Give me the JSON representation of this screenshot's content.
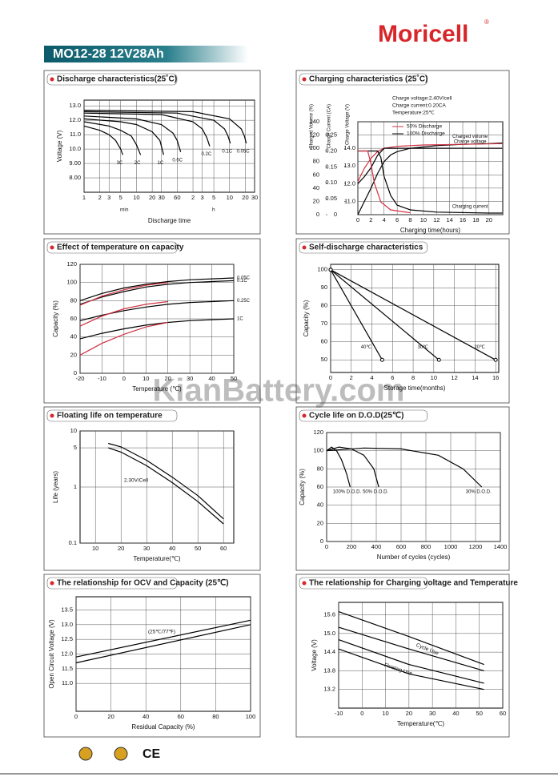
{
  "header": {
    "brand": "Moricell",
    "reg": "®",
    "model": "MO12-28  12V28Ah"
  },
  "watermark": "KianBattery.com",
  "footer": {
    "mark": "CE"
  },
  "charts": [
    {
      "title": "Discharge characteristics(25˚C)",
      "ylabel": "Voltage (V)",
      "xlabel": "Discharge time",
      "notes": [
        "min",
        "h"
      ],
      "xlog": true,
      "xlim": [
        1,
        1800
      ],
      "xticks": [
        1,
        2,
        3,
        5,
        10,
        20,
        30,
        60,
        {
          "value": 120,
          "label": "2"
        },
        {
          "value": 180,
          "label": "3"
        },
        {
          "value": 300,
          "label": "5"
        },
        {
          "value": 600,
          "label": "10"
        },
        {
          "value": 1200,
          "label": "20"
        },
        {
          "value": 1800,
          "label": "30"
        }
      ],
      "ylim": [
        7.0,
        13.4
      ],
      "yticks": [
        {
          "value": 8,
          "label": "8.00"
        },
        {
          "value": 9,
          "label": "9.00"
        },
        {
          "value": 10,
          "label": "10.0"
        },
        {
          "value": 11,
          "label": "11.0"
        },
        {
          "value": 12,
          "label": "12.0"
        },
        {
          "value": 13,
          "label": "13.0"
        }
      ],
      "curves": [
        {
          "name": "3C",
          "color": "#000",
          "x": [
            1,
            2,
            3,
            4,
            5,
            5.5
          ],
          "y": [
            11.6,
            11.3,
            11.0,
            10.6,
            10.0,
            9.6
          ]
        },
        {
          "name": "2C",
          "color": "#000",
          "x": [
            1,
            3,
            5,
            8,
            10,
            12
          ],
          "y": [
            11.9,
            11.6,
            11.3,
            10.9,
            10.3,
            9.6
          ]
        },
        {
          "name": "1C",
          "color": "#000",
          "x": [
            1,
            5,
            10,
            20,
            28,
            33
          ],
          "y": [
            12.1,
            11.9,
            11.7,
            11.2,
            10.6,
            9.6
          ]
        },
        {
          "name": "0.6C",
          "color": "#000",
          "x": [
            1,
            10,
            30,
            50,
            60,
            70
          ],
          "y": [
            12.3,
            12.1,
            11.7,
            11.1,
            10.6,
            9.8
          ]
        },
        {
          "name": "0.2C",
          "color": "#000",
          "x": [
            1,
            30,
            120,
            180,
            220,
            250
          ],
          "y": [
            12.5,
            12.4,
            11.9,
            11.4,
            10.8,
            10.2
          ]
        },
        {
          "name": "0.1C",
          "color": "#000",
          "x": [
            1,
            60,
            300,
            480,
            560,
            620
          ],
          "y": [
            12.6,
            12.5,
            12.0,
            11.4,
            10.9,
            10.4
          ]
        },
        {
          "name": "0.05C",
          "color": "#000",
          "x": [
            1,
            120,
            600,
            1000,
            1150,
            1250
          ],
          "y": [
            12.7,
            12.6,
            12.1,
            11.4,
            10.9,
            10.4
          ]
        }
      ]
    },
    {
      "title": "Charging characteristics (25˚C)",
      "ylabel": "Charged Volume (%)",
      "y2label": "Charge Current (CA)",
      "y3label": "Charge Voltage (V)",
      "xlabel": "Charging time(hours)",
      "notes": [
        "Charge voltage:2.40V/cell",
        "Charge current:0.20CA",
        "Temperature:25℃",
        "50% Discharge",
        "100% Discharge"
      ],
      "xlim": [
        0,
        22.1
      ],
      "xticks": [
        0,
        2,
        4,
        6,
        8,
        10,
        12,
        14,
        16,
        18,
        20
      ],
      "ylim": [
        0,
        140
      ],
      "yticks": [
        0,
        20,
        40,
        60,
        80,
        100,
        120,
        140
      ],
      "y2lim": [
        0,
        0.2917
      ],
      "y2ticks": [
        0,
        0.05,
        {
          "value": 0.1,
          "label": "0.10"
        },
        0.15,
        {
          "value": 0.2,
          "label": "0.20"
        },
        0.25
      ],
      "y3lim": [
        10.25,
        15.5
      ],
      "y3ticks": [
        {
          "value": 11,
          "label": "11.0"
        },
        {
          "value": 12,
          "label": "12.0"
        },
        {
          "value": 13,
          "label": "13.0"
        },
        {
          "value": 14,
          "label": "14.0"
        }
      ],
      "curves": [
        {
          "name": "Charged volume",
          "color": "#000",
          "x": [
            0,
            1,
            2,
            3,
            4,
            5,
            6,
            8,
            12,
            16,
            20,
            22
          ],
          "y": [
            0,
            20,
            40,
            62,
            80,
            90,
            95,
            100,
            104,
            106,
            107,
            108
          ]
        },
        {
          "color": "#d03040",
          "x": [
            0,
            1,
            2,
            3,
            4,
            6,
            10,
            16,
            22
          ],
          "y": [
            50,
            70,
            85,
            95,
            100,
            103,
            105,
            106,
            107
          ]
        },
        {
          "name": "Charge voltage",
          "color": "#000",
          "axis": "y3",
          "x": [
            0,
            1,
            2,
            3,
            4,
            6,
            22
          ],
          "y": [
            12.0,
            12.4,
            12.9,
            13.6,
            14.0,
            14.0,
            14.0
          ]
        },
        {
          "name": "Charging current",
          "color": "#000",
          "axis": "y2",
          "x": [
            0,
            3,
            3.5,
            4,
            5,
            6,
            8,
            12,
            20,
            22
          ],
          "y": [
            0.2,
            0.2,
            0.18,
            0.12,
            0.06,
            0.03,
            0.015,
            0.008,
            0.005,
            0.005
          ]
        },
        {
          "color": "#d03040",
          "axis": "y2",
          "x": [
            0,
            1.5,
            2,
            2.5,
            3.5,
            5,
            8
          ],
          "y": [
            0.2,
            0.2,
            0.16,
            0.1,
            0.04,
            0.015,
            0.006
          ]
        }
      ]
    },
    {
      "title": "Effect of temperature on capacity",
      "ylabel": "Capacity (%)",
      "xlabel": "Temperature (℃)",
      "xlim": [
        -20,
        50
      ],
      "xticks": [
        -20,
        -10,
        0,
        10,
        20,
        30,
        40,
        50
      ],
      "ylim": [
        0,
        120
      ],
      "yticks": [
        0,
        20,
        40,
        60,
        80,
        100,
        120
      ],
      "curves": [
        {
          "name": "0.05C",
          "color": "#000",
          "x": [
            -20,
            -10,
            0,
            10,
            20,
            30,
            40,
            50
          ],
          "y": [
            80,
            88,
            94,
            98,
            101,
            103,
            104,
            105
          ]
        },
        {
          "name": "0.1C",
          "color": "#000",
          "x": [
            -20,
            -10,
            0,
            10,
            20,
            30,
            40,
            50
          ],
          "y": [
            76,
            84,
            90,
            95,
            98,
            100,
            101,
            102
          ]
        },
        {
          "name": "0.25C",
          "color": "#000",
          "x": [
            -20,
            -10,
            0,
            10,
            20,
            30,
            40,
            50
          ],
          "y": [
            58,
            64,
            69,
            73,
            76,
            78,
            79,
            80
          ]
        },
        {
          "name": "1C",
          "color": "#000",
          "x": [
            -20,
            -10,
            0,
            10,
            20,
            30,
            40,
            50
          ],
          "y": [
            38,
            44,
            49,
            53,
            56,
            58,
            59,
            60
          ]
        },
        {
          "color": "#d03040",
          "x": [
            -20,
            -10,
            0,
            10,
            20
          ],
          "y": [
            75,
            85,
            92,
            97,
            100
          ]
        },
        {
          "color": "#d03040",
          "x": [
            -20,
            -10,
            0,
            10,
            20
          ],
          "y": [
            52,
            63,
            71,
            76,
            79
          ]
        },
        {
          "color": "#d03040",
          "x": [
            -20,
            -10,
            0,
            10,
            20
          ],
          "y": [
            20,
            33,
            43,
            51,
            56
          ]
        }
      ]
    },
    {
      "title": "Self-discharge characteristics",
      "ylabel": "Capacity (%)",
      "xlabel": "Storage time(months)",
      "markers": true,
      "xlim": [
        0,
        16.3
      ],
      "xticks": [
        0,
        2,
        4,
        6,
        8,
        10,
        12,
        14,
        16
      ],
      "ylim": [
        43,
        103
      ],
      "yticks": [
        50,
        60,
        70,
        80,
        90,
        100
      ],
      "curves": [
        {
          "name": "40℃",
          "color": "#000",
          "x": [
            0,
            5
          ],
          "y": [
            100,
            50
          ]
        },
        {
          "name": "30℃",
          "color": "#000",
          "x": [
            0,
            10.5
          ],
          "y": [
            100,
            50
          ]
        },
        {
          "name": "20℃",
          "color": "#000",
          "x": [
            0,
            16
          ],
          "y": [
            100,
            50
          ]
        }
      ]
    },
    {
      "title": "Floating life on temperature",
      "ylabel": "Life (years)",
      "xlabel": "Temperature(℃)",
      "notes": [
        "2.30V/Cell"
      ],
      "ylog": true,
      "xlim": [
        4,
        64
      ],
      "xticks": [
        10,
        20,
        30,
        40,
        50,
        60
      ],
      "ylim": [
        0.1,
        10
      ],
      "yticks": [
        0.1,
        1,
        5,
        10
      ],
      "curves": [
        {
          "color": "#000",
          "x": [
            15,
            20,
            30,
            40,
            50,
            60
          ],
          "y": [
            6,
            5.2,
            3,
            1.5,
            0.7,
            0.27
          ]
        },
        {
          "color": "#000",
          "x": [
            15,
            20,
            30,
            40,
            50,
            60
          ],
          "y": [
            5,
            4.2,
            2.4,
            1.2,
            0.55,
            0.22
          ]
        }
      ]
    },
    {
      "title": "Cycle life on D.O.D(25℃)",
      "ylabel": "Capacity (%)",
      "xlabel": "Number of cycles (cycles)",
      "xlim": [
        0,
        1400
      ],
      "xticks": [
        0,
        200,
        400,
        600,
        800,
        1000,
        1200,
        1400
      ],
      "ylim": [
        0,
        120
      ],
      "yticks": [
        0,
        20,
        40,
        60,
        80,
        100,
        120
      ],
      "curves": [
        {
          "name": "100% D.O.D.",
          "color": "#000",
          "x": [
            0,
            40,
            80,
            120,
            160,
            190
          ],
          "y": [
            100,
            104,
            100,
            90,
            75,
            60
          ]
        },
        {
          "name": "50% D.O.D.",
          "color": "#000",
          "x": [
            0,
            100,
            200,
            300,
            380,
            420
          ],
          "y": [
            100,
            104,
            102,
            95,
            80,
            60
          ]
        },
        {
          "name": "30% D.O.D.",
          "color": "#000",
          "x": [
            0,
            300,
            600,
            900,
            1100,
            1250
          ],
          "y": [
            100,
            103,
            102,
            95,
            80,
            60
          ]
        }
      ]
    },
    {
      "title": "The relationship  for OCV and Capacity (25℃)",
      "ylabel": "Open Circuit Voltage (V)",
      "xlabel": "Residual Capacity (%)",
      "notes": [
        "(25℃/77℉)"
      ],
      "xlim": [
        0,
        100
      ],
      "xticks": [
        0,
        20,
        40,
        60,
        80,
        100
      ],
      "ylim": [
        10.05,
        13.95
      ],
      "yticks": [
        {
          "value": 11,
          "label": "11.0"
        },
        11.5,
        {
          "value": 12,
          "label": "12.0"
        },
        12.5,
        {
          "value": 13,
          "label": "13.0"
        },
        13.5
      ],
      "curves": [
        {
          "color": "#000",
          "x": [
            0,
            100
          ],
          "y": [
            11.7,
            13.0
          ]
        },
        {
          "color": "#000",
          "x": [
            0,
            100
          ],
          "y": [
            11.9,
            13.15
          ]
        }
      ]
    },
    {
      "title": "The relationship for Charging voltage and Temperature",
      "ylabel": "Voltage (V)",
      "xlabel": "Temperature(℃)",
      "notes": [
        "Cycle Use",
        "Floating Use"
      ],
      "xlim": [
        -10,
        60
      ],
      "xticks": [
        -10,
        0,
        10,
        20,
        30,
        40,
        50,
        60
      ],
      "ylim": [
        12.6,
        16.0
      ],
      "yticks": [
        13.2,
        13.8,
        14.4,
        {
          "value": 15,
          "label": "15.0"
        },
        15.6
      ],
      "curves": [
        {
          "color": "#000",
          "x": [
            -10,
            20,
            52
          ],
          "y": [
            15.7,
            14.9,
            14.0
          ]
        },
        {
          "color": "#000",
          "x": [
            -10,
            20,
            52
          ],
          "y": [
            15.2,
            14.5,
            13.8
          ]
        },
        {
          "color": "#000",
          "x": [
            -10,
            20,
            52
          ],
          "y": [
            14.8,
            14.0,
            13.4
          ]
        },
        {
          "color": "#000",
          "x": [
            -10,
            20,
            52
          ],
          "y": [
            14.5,
            13.7,
            13.2
          ]
        }
      ]
    }
  ]
}
